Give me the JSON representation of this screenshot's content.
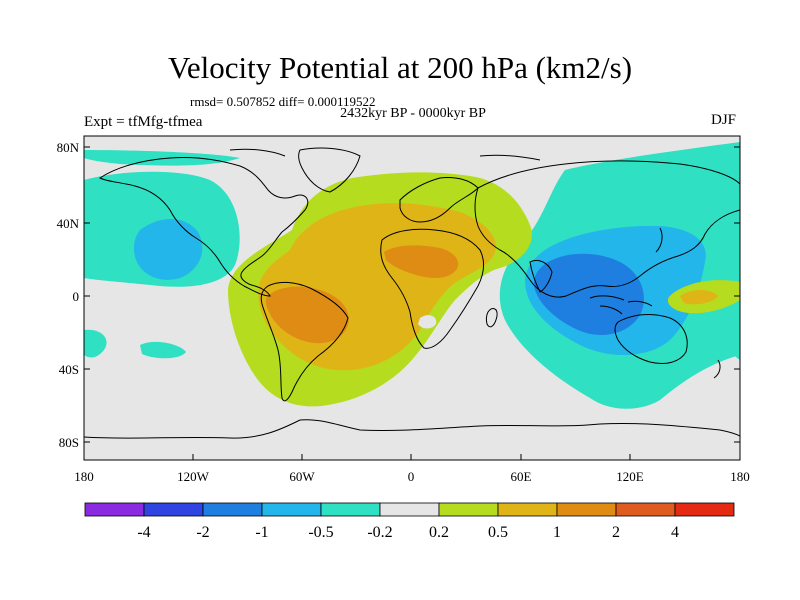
{
  "title": "Velocity Potential at 200 hPa (km2/s)",
  "stats_line": "rmsd= 0.507852 diff= 0.000119522",
  "period_line": "2432kyr BP - 0000kyr BP",
  "experiment_label": "Expt = tfMfg-tfmea",
  "season_label": "DJF",
  "lat_ticks": [
    "80N",
    "40N",
    "0",
    "40S",
    "80S"
  ],
  "lon_ticks": [
    "180",
    "120W",
    "60W",
    "0",
    "60E",
    "120E",
    "180"
  ],
  "colorbar": {
    "colors": [
      "#8a2be2",
      "#2f44e0",
      "#1e7fe0",
      "#23b6ea",
      "#2fe0c3",
      "#e6e6e6",
      "#b5dc1e",
      "#dfb417",
      "#de8c14",
      "#e05b1e",
      "#e52a14"
    ],
    "labels": [
      "-4",
      "-2",
      "-1",
      "-0.5",
      "-0.2",
      "0.2",
      "0.5",
      "1",
      "2",
      "4"
    ]
  },
  "colors": {
    "background": "#ffffff",
    "neutral": "#e6e6e6",
    "coast": "#000000"
  }
}
